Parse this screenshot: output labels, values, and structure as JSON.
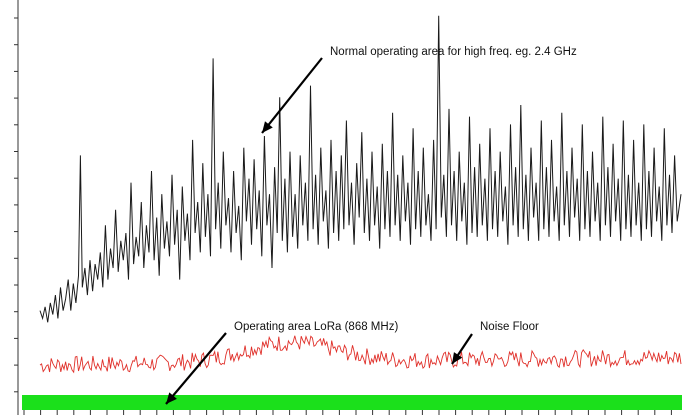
{
  "chart_data": {
    "type": "line",
    "title": "",
    "xlabel": "",
    "ylabel": "",
    "xlim": [
      0,
      100
    ],
    "ylim": [
      0,
      100
    ],
    "grid": false,
    "colors": {
      "signal": "#1a1a1a",
      "noise": "#e0302a",
      "lora_band": "#1be01b",
      "arrow": "#000000"
    },
    "series": [
      {
        "key": "high_freq",
        "values_summary": "dense spiky trace rising from about 22 at left to about 40 baseline, peaks up to about 98",
        "points": [
          [
            0.0,
            22
          ],
          [
            0.4,
            20
          ],
          [
            0.8,
            23
          ],
          [
            1.2,
            19
          ],
          [
            1.6,
            24
          ],
          [
            2.0,
            21
          ],
          [
            2.4,
            26
          ],
          [
            2.8,
            20
          ],
          [
            3.2,
            28
          ],
          [
            3.6,
            22
          ],
          [
            4.0,
            25
          ],
          [
            4.4,
            30
          ],
          [
            4.8,
            22
          ],
          [
            5.2,
            29
          ],
          [
            5.6,
            24
          ],
          [
            6.0,
            31
          ],
          [
            6.3,
            62
          ],
          [
            6.6,
            28
          ],
          [
            7.0,
            33
          ],
          [
            7.4,
            26
          ],
          [
            7.8,
            35
          ],
          [
            8.2,
            27
          ],
          [
            8.6,
            34
          ],
          [
            9.0,
            30
          ],
          [
            9.4,
            37
          ],
          [
            9.8,
            28
          ],
          [
            10.2,
            44
          ],
          [
            10.6,
            30
          ],
          [
            11.0,
            38
          ],
          [
            11.4,
            33
          ],
          [
            11.8,
            48
          ],
          [
            12.2,
            32
          ],
          [
            12.6,
            40
          ],
          [
            13.0,
            35
          ],
          [
            13.4,
            42
          ],
          [
            13.8,
            30
          ],
          [
            14.2,
            55
          ],
          [
            14.6,
            34
          ],
          [
            15.0,
            41
          ],
          [
            15.4,
            36
          ],
          [
            15.8,
            50
          ],
          [
            16.2,
            33
          ],
          [
            16.6,
            44
          ],
          [
            17.0,
            37
          ],
          [
            17.4,
            58
          ],
          [
            17.8,
            35
          ],
          [
            18.2,
            46
          ],
          [
            18.6,
            31
          ],
          [
            19.0,
            52
          ],
          [
            19.4,
            38
          ],
          [
            19.8,
            45
          ],
          [
            20.2,
            36
          ],
          [
            20.6,
            57
          ],
          [
            21.0,
            39
          ],
          [
            21.4,
            48
          ],
          [
            21.8,
            30
          ],
          [
            22.2,
            54
          ],
          [
            22.6,
            40
          ],
          [
            23.0,
            47
          ],
          [
            23.4,
            35
          ],
          [
            23.8,
            66
          ],
          [
            24.2,
            42
          ],
          [
            24.6,
            50
          ],
          [
            25.0,
            37
          ],
          [
            25.4,
            60
          ],
          [
            25.8,
            41
          ],
          [
            26.2,
            52
          ],
          [
            26.6,
            36
          ],
          [
            27.0,
            87
          ],
          [
            27.4,
            43
          ],
          [
            27.8,
            55
          ],
          [
            28.2,
            38
          ],
          [
            28.6,
            63
          ],
          [
            29.0,
            44
          ],
          [
            29.4,
            51
          ],
          [
            29.8,
            37
          ],
          [
            30.2,
            58
          ],
          [
            30.6,
            42
          ],
          [
            31.0,
            49
          ],
          [
            31.4,
            35
          ],
          [
            31.8,
            64
          ],
          [
            32.2,
            45
          ],
          [
            32.6,
            56
          ],
          [
            33.0,
            39
          ],
          [
            33.4,
            61
          ],
          [
            33.8,
            43
          ],
          [
            34.2,
            53
          ],
          [
            34.6,
            36
          ],
          [
            35.0,
            67
          ],
          [
            35.4,
            44
          ],
          [
            35.8,
            52
          ],
          [
            36.2,
            33
          ],
          [
            36.6,
            59
          ],
          [
            37.0,
            42
          ],
          [
            37.4,
            77
          ],
          [
            37.8,
            40
          ],
          [
            38.2,
            56
          ],
          [
            38.6,
            37
          ],
          [
            39.0,
            63
          ],
          [
            39.4,
            41
          ],
          [
            39.8,
            52
          ],
          [
            40.2,
            38
          ],
          [
            40.6,
            62
          ],
          [
            41.0,
            44
          ],
          [
            41.4,
            55
          ],
          [
            41.8,
            40
          ],
          [
            42.2,
            80
          ],
          [
            42.6,
            43
          ],
          [
            43.0,
            57
          ],
          [
            43.4,
            39
          ],
          [
            43.8,
            64
          ],
          [
            44.2,
            45
          ],
          [
            44.6,
            53
          ],
          [
            45.0,
            38
          ],
          [
            45.4,
            66
          ],
          [
            45.8,
            42
          ],
          [
            46.2,
            58
          ],
          [
            46.6,
            40
          ],
          [
            47.0,
            62
          ],
          [
            47.4,
            43
          ],
          [
            47.8,
            71
          ],
          [
            48.2,
            44
          ],
          [
            48.6,
            55
          ],
          [
            49.0,
            39
          ],
          [
            49.4,
            60
          ],
          [
            49.8,
            46
          ],
          [
            50.2,
            68
          ],
          [
            50.6,
            42
          ],
          [
            51.0,
            56
          ],
          [
            51.4,
            40
          ],
          [
            51.8,
            63
          ],
          [
            52.2,
            44
          ],
          [
            52.6,
            54
          ],
          [
            53.0,
            38
          ],
          [
            53.4,
            65
          ],
          [
            53.8,
            43
          ],
          [
            54.2,
            58
          ],
          [
            54.6,
            41
          ],
          [
            55.0,
            73
          ],
          [
            55.4,
            44
          ],
          [
            55.8,
            57
          ],
          [
            56.2,
            40
          ],
          [
            56.6,
            62
          ],
          [
            57.0,
            45
          ],
          [
            57.4,
            55
          ],
          [
            57.8,
            39
          ],
          [
            58.2,
            69
          ],
          [
            58.6,
            43
          ],
          [
            59.0,
            58
          ],
          [
            59.4,
            41
          ],
          [
            59.8,
            64
          ],
          [
            60.2,
            44
          ],
          [
            60.6,
            52
          ],
          [
            61.0,
            40
          ],
          [
            61.4,
            66
          ],
          [
            61.8,
            43
          ],
          [
            62.2,
            98
          ],
          [
            62.6,
            46
          ],
          [
            63.0,
            57
          ],
          [
            63.4,
            41
          ],
          [
            63.8,
            74
          ],
          [
            64.2,
            44
          ],
          [
            64.6,
            58
          ],
          [
            65.0,
            40
          ],
          [
            65.4,
            63
          ],
          [
            65.8,
            45
          ],
          [
            66.2,
            55
          ],
          [
            66.6,
            39
          ],
          [
            67.0,
            72
          ],
          [
            67.4,
            42
          ],
          [
            67.8,
            59
          ],
          [
            68.2,
            41
          ],
          [
            68.6,
            65
          ],
          [
            69.0,
            44
          ],
          [
            69.4,
            56
          ],
          [
            69.8,
            40
          ],
          [
            70.2,
            69
          ],
          [
            70.6,
            43
          ],
          [
            71.0,
            58
          ],
          [
            71.4,
            41
          ],
          [
            71.8,
            63
          ],
          [
            72.2,
            45
          ],
          [
            72.6,
            54
          ],
          [
            73.0,
            39
          ],
          [
            73.4,
            70
          ],
          [
            73.8,
            44
          ],
          [
            74.2,
            59
          ],
          [
            74.6,
            41
          ],
          [
            75.0,
            75
          ],
          [
            75.4,
            43
          ],
          [
            75.8,
            57
          ],
          [
            76.2,
            40
          ],
          [
            76.6,
            64
          ],
          [
            77.0,
            46
          ],
          [
            77.4,
            55
          ],
          [
            77.8,
            40
          ],
          [
            78.2,
            71
          ],
          [
            78.6,
            43
          ],
          [
            79.0,
            59
          ],
          [
            79.4,
            41
          ],
          [
            79.8,
            66
          ],
          [
            80.2,
            45
          ],
          [
            80.6,
            54
          ],
          [
            81.0,
            40
          ],
          [
            81.4,
            73
          ],
          [
            81.8,
            44
          ],
          [
            82.2,
            58
          ],
          [
            82.6,
            41
          ],
          [
            83.0,
            64
          ],
          [
            83.4,
            46
          ],
          [
            83.8,
            56
          ],
          [
            84.2,
            40
          ],
          [
            84.6,
            70
          ],
          [
            85.0,
            43
          ],
          [
            85.4,
            58
          ],
          [
            85.8,
            41
          ],
          [
            86.2,
            63
          ],
          [
            86.6,
            45
          ],
          [
            87.0,
            55
          ],
          [
            87.4,
            40
          ],
          [
            87.8,
            72
          ],
          [
            88.2,
            44
          ],
          [
            88.6,
            59
          ],
          [
            89.0,
            41
          ],
          [
            89.4,
            65
          ],
          [
            89.8,
            45
          ],
          [
            90.2,
            56
          ],
          [
            90.6,
            40
          ],
          [
            91.0,
            71
          ],
          [
            91.4,
            43
          ],
          [
            91.8,
            57
          ],
          [
            92.2,
            41
          ],
          [
            92.6,
            66
          ],
          [
            93.0,
            44
          ],
          [
            93.4,
            55
          ],
          [
            93.8,
            40
          ],
          [
            94.2,
            70
          ],
          [
            94.6,
            43
          ],
          [
            95.0,
            58
          ],
          [
            95.4,
            41
          ],
          [
            95.8,
            64
          ],
          [
            96.2,
            45
          ],
          [
            96.6,
            54
          ],
          [
            97.0,
            40
          ],
          [
            97.4,
            69
          ],
          [
            97.8,
            44
          ],
          [
            98.2,
            57
          ],
          [
            98.6,
            42
          ],
          [
            99.0,
            62
          ],
          [
            99.4,
            45
          ],
          [
            100.0,
            52
          ]
        ]
      },
      {
        "key": "noise_floor",
        "values_summary": "red noise band about 6-12 with bump near 40",
        "base": 8.0,
        "amplitude": 2.2,
        "bump_center": 39,
        "bump_height": 5
      }
    ],
    "annotations": [
      {
        "text": "Normal operating area for high freq. eg. 2.4 GHz"
      },
      {
        "text": "Operating area LoRa (868 MHz)"
      },
      {
        "text": "Noise Floor"
      }
    ]
  }
}
